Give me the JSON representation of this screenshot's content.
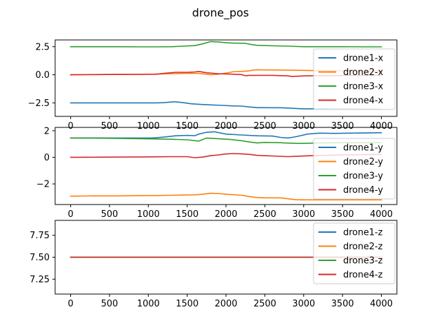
{
  "figure": {
    "title": "drone_pos"
  },
  "colors": {
    "drone1": "#1f77b4",
    "drone2": "#ff7f0e",
    "drone3": "#2ca02c",
    "drone4": "#d62728"
  },
  "chart_data": [
    {
      "type": "line",
      "title": "",
      "xlabel": "",
      "ylabel": "",
      "xlim": [
        -200,
        4200
      ],
      "ylim": [
        -3.7,
        3.1
      ],
      "xticks": [
        0,
        500,
        1000,
        1500,
        2000,
        2500,
        3000,
        3500,
        4000
      ],
      "yticks": [
        -2.5,
        0.0,
        2.5
      ],
      "ytick_labels": [
        "−2.5",
        "0.0",
        "2.5"
      ],
      "grid": false,
      "legend": "right",
      "series": [
        {
          "name": "drone1-x",
          "color_key": "drone1",
          "x": [
            0,
            300,
            600,
            900,
            1100,
            1200,
            1300,
            1350,
            1450,
            1550,
            1650,
            1800,
            1950,
            2100,
            2200,
            2300,
            2400,
            2600,
            2700,
            2800,
            3000,
            3200,
            3500,
            3800,
            4000
          ],
          "y": [
            -2.5,
            -2.5,
            -2.5,
            -2.5,
            -2.5,
            -2.48,
            -2.42,
            -2.4,
            -2.48,
            -2.58,
            -2.62,
            -2.68,
            -2.72,
            -2.77,
            -2.78,
            -2.86,
            -2.92,
            -2.93,
            -2.93,
            -2.96,
            -3.03,
            -3.03,
            -3.05,
            -3.06,
            -3.06
          ]
        },
        {
          "name": "drone2-x",
          "color_key": "drone2",
          "x": [
            0,
            300,
            600,
            900,
            1100,
            1300,
            1500,
            1650,
            1750,
            1800,
            1900,
            2000,
            2100,
            2200,
            2300,
            2350,
            2400,
            2500,
            2700,
            2900,
            3100,
            3300,
            3500,
            3800,
            4000
          ],
          "y": [
            0.0,
            0.02,
            0.03,
            0.04,
            0.06,
            0.1,
            0.13,
            0.12,
            0.05,
            0.0,
            0.05,
            0.15,
            0.28,
            0.3,
            0.35,
            0.42,
            0.45,
            0.43,
            0.42,
            0.4,
            0.38,
            0.37,
            0.35,
            0.34,
            0.33
          ]
        },
        {
          "name": "drone3-x",
          "color_key": "drone3",
          "x": [
            0,
            300,
            600,
            900,
            1100,
            1300,
            1450,
            1600,
            1700,
            1800,
            1900,
            2000,
            2100,
            2250,
            2300,
            2400,
            2600,
            2800,
            3000,
            3200,
            3500,
            3800,
            4000
          ],
          "y": [
            2.5,
            2.5,
            2.5,
            2.49,
            2.49,
            2.5,
            2.55,
            2.6,
            2.75,
            2.95,
            2.92,
            2.85,
            2.82,
            2.8,
            2.72,
            2.62,
            2.58,
            2.55,
            2.5,
            2.5,
            2.5,
            2.49,
            2.49
          ]
        },
        {
          "name": "drone4-x",
          "color_key": "drone4",
          "x": [
            0,
            300,
            600,
            900,
            1100,
            1200,
            1350,
            1500,
            1600,
            1650,
            1750,
            1900,
            2100,
            2200,
            2250,
            2300,
            2400,
            2600,
            2800,
            2850,
            3000,
            3200,
            3500,
            3800,
            4000
          ],
          "y": [
            0.0,
            0.02,
            0.03,
            0.04,
            0.05,
            0.12,
            0.22,
            0.22,
            0.25,
            0.3,
            0.18,
            0.1,
            0.05,
            0.02,
            -0.08,
            -0.05,
            -0.05,
            -0.05,
            -0.1,
            -0.15,
            -0.1,
            -0.08,
            -0.07,
            -0.05,
            -0.05
          ]
        }
      ]
    },
    {
      "type": "line",
      "title": "",
      "xlabel": "",
      "ylabel": "",
      "xlim": [
        -200,
        4200
      ],
      "ylim": [
        -3.55,
        2.25
      ],
      "xticks": [
        0,
        500,
        1000,
        1500,
        2000,
        2500,
        3000,
        3500,
        4000
      ],
      "yticks": [
        -2,
        0,
        2
      ],
      "ytick_labels": [
        "−2",
        "0",
        "2"
      ],
      "grid": false,
      "legend": "right",
      "series": [
        {
          "name": "drone1-y",
          "color_key": "drone1",
          "x": [
            0,
            300,
            600,
            900,
            1050,
            1200,
            1350,
            1500,
            1600,
            1650,
            1750,
            1850,
            2000,
            2200,
            2400,
            2600,
            2700,
            2800,
            2900,
            3050,
            3200,
            3400,
            3600,
            3800,
            4000
          ],
          "y": [
            1.45,
            1.46,
            1.45,
            1.45,
            1.45,
            1.52,
            1.62,
            1.65,
            1.63,
            1.75,
            1.88,
            1.92,
            1.75,
            1.68,
            1.62,
            1.6,
            1.5,
            1.45,
            1.55,
            1.75,
            1.82,
            1.8,
            1.82,
            1.83,
            1.85
          ]
        },
        {
          "name": "drone2-y",
          "color_key": "drone2",
          "x": [
            0,
            300,
            600,
            900,
            1100,
            1300,
            1500,
            1600,
            1700,
            1800,
            1900,
            2000,
            2200,
            2300,
            2400,
            2500,
            2700,
            2800,
            2900,
            3000,
            3200,
            3500,
            3800,
            4000
          ],
          "y": [
            -2.92,
            -2.9,
            -2.9,
            -2.88,
            -2.87,
            -2.85,
            -2.83,
            -2.82,
            -2.78,
            -2.7,
            -2.72,
            -2.78,
            -2.85,
            -2.95,
            -3.02,
            -3.05,
            -3.05,
            -3.12,
            -3.18,
            -3.2,
            -3.2,
            -3.2,
            -3.2,
            -3.2
          ]
        },
        {
          "name": "drone3-y",
          "color_key": "drone3",
          "x": [
            0,
            300,
            600,
            900,
            1100,
            1300,
            1500,
            1600,
            1650,
            1750,
            1900,
            2050,
            2200,
            2300,
            2400,
            2500,
            2700,
            2750,
            2900,
            3000,
            3200,
            3500,
            3800,
            4000
          ],
          "y": [
            1.45,
            1.44,
            1.42,
            1.4,
            1.38,
            1.36,
            1.32,
            1.25,
            1.22,
            1.45,
            1.4,
            1.35,
            1.25,
            1.15,
            1.08,
            1.12,
            1.1,
            1.08,
            1.05,
            1.05,
            1.08,
            1.1,
            1.1,
            1.1
          ]
        },
        {
          "name": "drone4-y",
          "color_key": "drone4",
          "x": [
            0,
            300,
            600,
            900,
            1100,
            1300,
            1500,
            1600,
            1700,
            1800,
            1900,
            2000,
            2100,
            2200,
            2300,
            2400,
            2600,
            2800,
            2900,
            3100,
            3300,
            3500,
            3800,
            4000
          ],
          "y": [
            0.0,
            0.01,
            0.02,
            0.03,
            0.04,
            0.05,
            0.05,
            -0.03,
            0.02,
            0.12,
            0.18,
            0.25,
            0.28,
            0.26,
            0.22,
            0.15,
            0.1,
            0.05,
            0.08,
            0.12,
            0.15,
            0.18,
            0.2,
            0.22
          ]
        }
      ]
    },
    {
      "type": "line",
      "title": "",
      "xlabel": "",
      "ylabel": "",
      "xlim": [
        -200,
        4200
      ],
      "ylim": [
        7.08,
        7.92
      ],
      "xticks": [
        0,
        500,
        1000,
        1500,
        2000,
        2500,
        3000,
        3500,
        4000
      ],
      "yticks": [
        7.25,
        7.5,
        7.75
      ],
      "ytick_labels": [
        "7.25",
        "7.50",
        "7.75"
      ],
      "grid": false,
      "legend": "right",
      "series": [
        {
          "name": "drone1-z",
          "color_key": "drone1",
          "x": [
            0,
            4000
          ],
          "y": [
            7.5,
            7.5
          ]
        },
        {
          "name": "drone2-z",
          "color_key": "drone2",
          "x": [
            0,
            4000
          ],
          "y": [
            7.5,
            7.5
          ]
        },
        {
          "name": "drone3-z",
          "color_key": "drone3",
          "x": [
            0,
            4000
          ],
          "y": [
            7.5,
            7.5
          ]
        },
        {
          "name": "drone4-z",
          "color_key": "drone4",
          "x": [
            0,
            4000
          ],
          "y": [
            7.5,
            7.5
          ]
        }
      ]
    }
  ]
}
